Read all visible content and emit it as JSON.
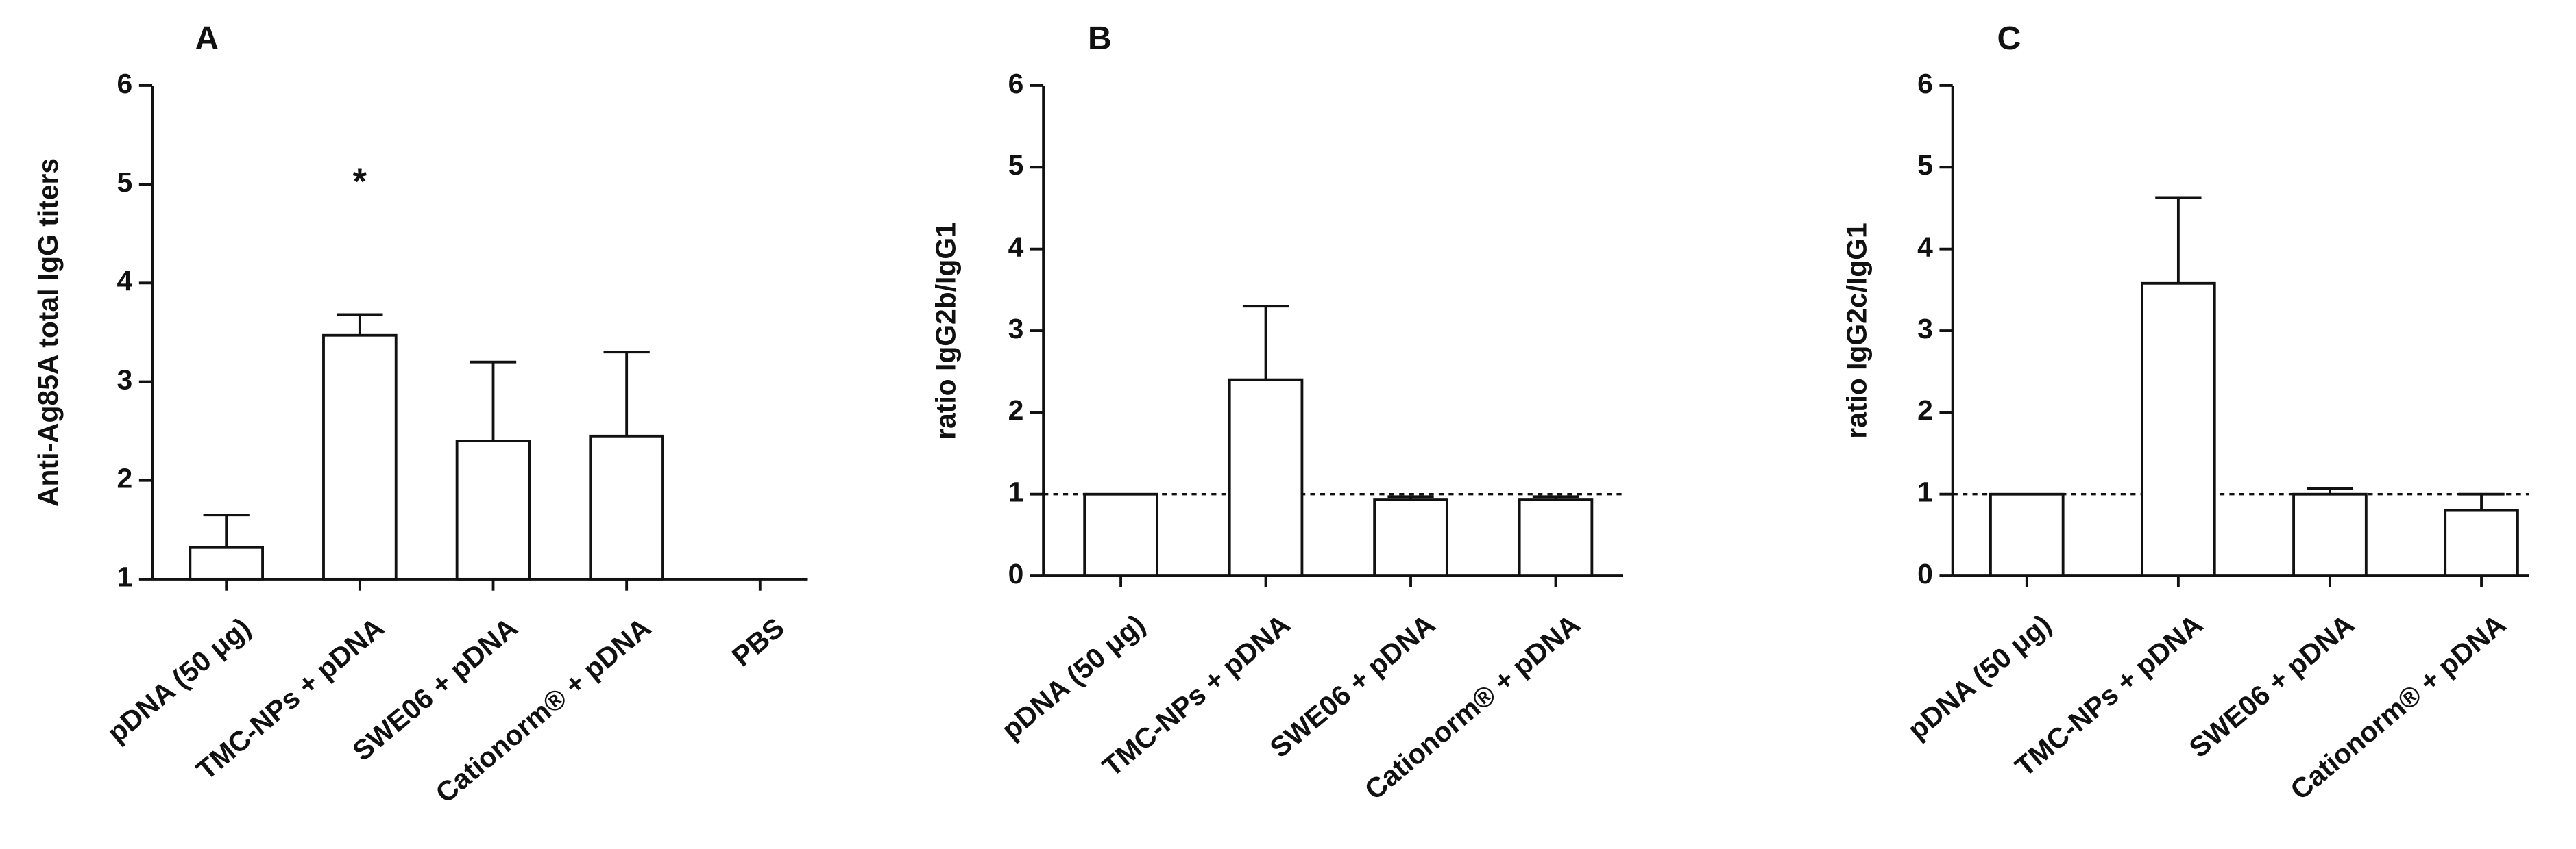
{
  "chart_data": [
    {
      "type": "bar",
      "title": "A",
      "ylabel": "Anti-Ag85A total IgG titers",
      "categories": [
        "pDNA (50 μg)",
        "TMC-NPs + pDNA",
        "SWE06 + pDNA",
        "Cationorm® + pDNA",
        "PBS"
      ],
      "values": [
        1.32,
        3.47,
        2.4,
        2.45,
        1
      ],
      "errors": [
        0.33,
        0.21,
        0.8,
        0.85,
        null
      ],
      "color": "#ffffff",
      "ylim": [
        1,
        6
      ],
      "yticks": [
        1,
        2,
        3,
        4,
        5,
        6
      ],
      "annotations": [
        {
          "text": "*",
          "category": "TMC-NPs + pDNA",
          "y": 5
        }
      ]
    },
    {
      "type": "bar",
      "title": "B",
      "ylabel": "ratio IgG2b/IgG1",
      "categories": [
        "pDNA (50 μg)",
        "TMC-NPs + pDNA",
        "SWE06 + pDNA",
        "Cationorm® + pDNA"
      ],
      "values": [
        1.0,
        2.4,
        0.93,
        0.93
      ],
      "errors": [
        null,
        0.9,
        0.04,
        0.04
      ],
      "color": "#ffffff",
      "ylim": [
        0,
        6
      ],
      "yticks": [
        0,
        1,
        2,
        3,
        4,
        5,
        6
      ],
      "reference_line": 1
    },
    {
      "type": "bar",
      "title": "C",
      "ylabel": "ratio IgG2c/IgG1",
      "categories": [
        "pDNA (50 μg)",
        "TMC-NPs + pDNA",
        "SWE06 + pDNA",
        "Cationorm® + pDNA"
      ],
      "values": [
        1.0,
        3.58,
        1.0,
        0.8
      ],
      "errors": [
        null,
        1.05,
        0.07,
        0.2
      ],
      "color": "#ffffff",
      "ylim": [
        0,
        6
      ],
      "yticks": [
        0,
        1,
        2,
        3,
        4,
        5,
        6
      ],
      "reference_line": 1
    }
  ]
}
